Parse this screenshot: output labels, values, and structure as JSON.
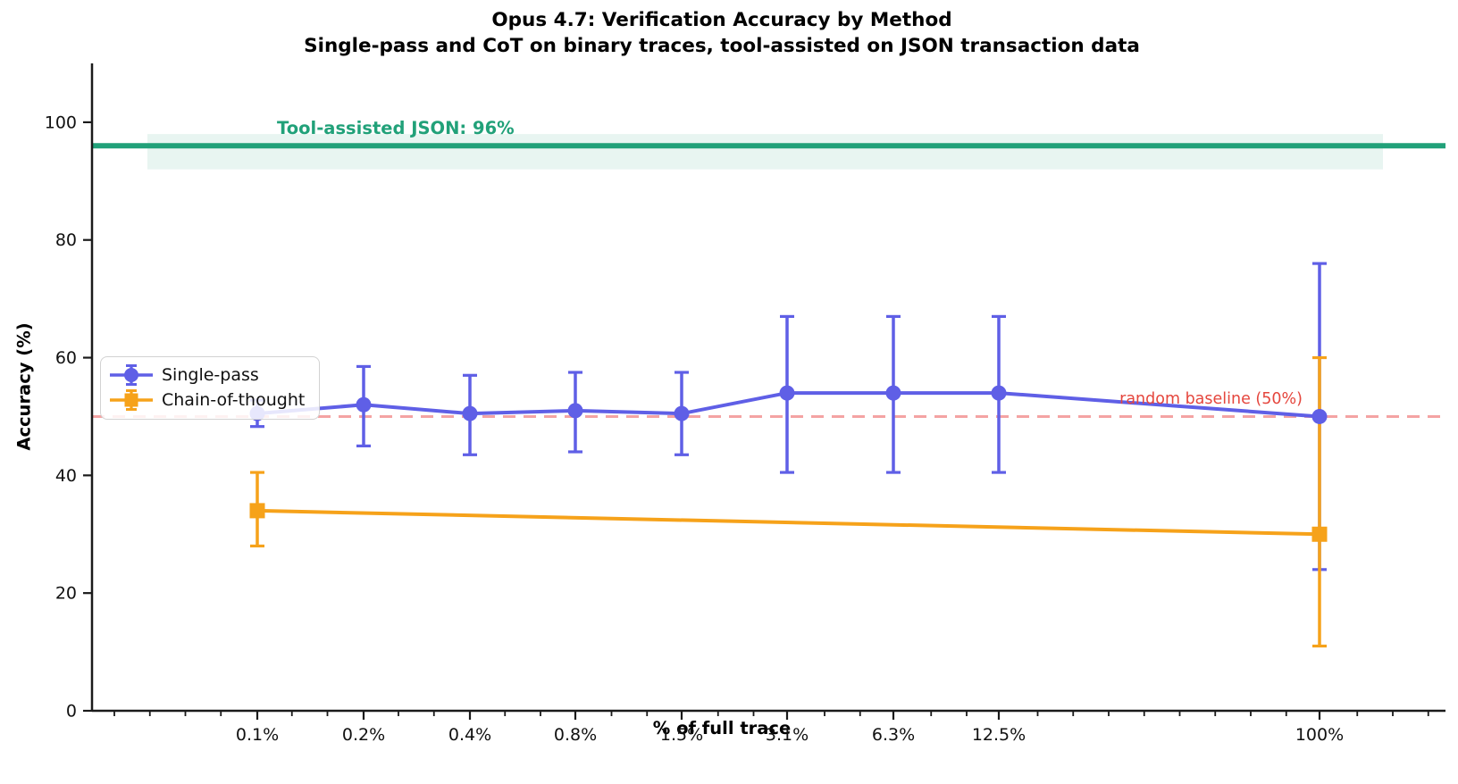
{
  "title": "Opus 4.7: Verification Accuracy by Method",
  "subtitle": "Single-pass and CoT on binary traces, tool-assisted on JSON transaction data",
  "chart_data": {
    "type": "line",
    "x_scale": "log",
    "xlabel": "% of full trace",
    "ylabel": "Accuracy (%)",
    "ylim": [
      0,
      110
    ],
    "yticks": [
      "0",
      "20",
      "40",
      "60",
      "80",
      "100"
    ],
    "categories": [
      "0.1%",
      "0.2%",
      "0.4%",
      "0.8%",
      "1.5%",
      "3.1%",
      "6.3%",
      "12.5%",
      "100%"
    ],
    "series": [
      {
        "name": "Single-pass",
        "marker": "circle",
        "color": "#5F5FE6",
        "values": [
          50.5,
          52,
          50.5,
          51,
          50.5,
          54,
          54,
          54,
          50
        ],
        "err_low": [
          48.3,
          45,
          43.5,
          44,
          43.5,
          40.5,
          40.5,
          40.5,
          24
        ],
        "err_high": [
          52.8,
          58.5,
          57,
          57.5,
          57.5,
          67,
          67,
          67,
          76
        ]
      },
      {
        "name": "Chain-of-thought",
        "marker": "square",
        "color": "#F6A21A",
        "categories": [
          "0.1%",
          "100%"
        ],
        "values": [
          34,
          30
        ],
        "err_low": [
          28,
          11
        ],
        "err_high": [
          40.5,
          60
        ]
      }
    ],
    "annotations": [
      {
        "text": "Tool-assisted JSON: 96%",
        "value": 96,
        "band": [
          92,
          98
        ],
        "color": "#21A179"
      },
      {
        "text": "random baseline (50%)",
        "value": 50,
        "style": "dashed",
        "line_color": "#F4A3A3",
        "text_color": "#E5463D"
      }
    ],
    "legend": [
      "Single-pass",
      "Chain-of-thought"
    ]
  }
}
